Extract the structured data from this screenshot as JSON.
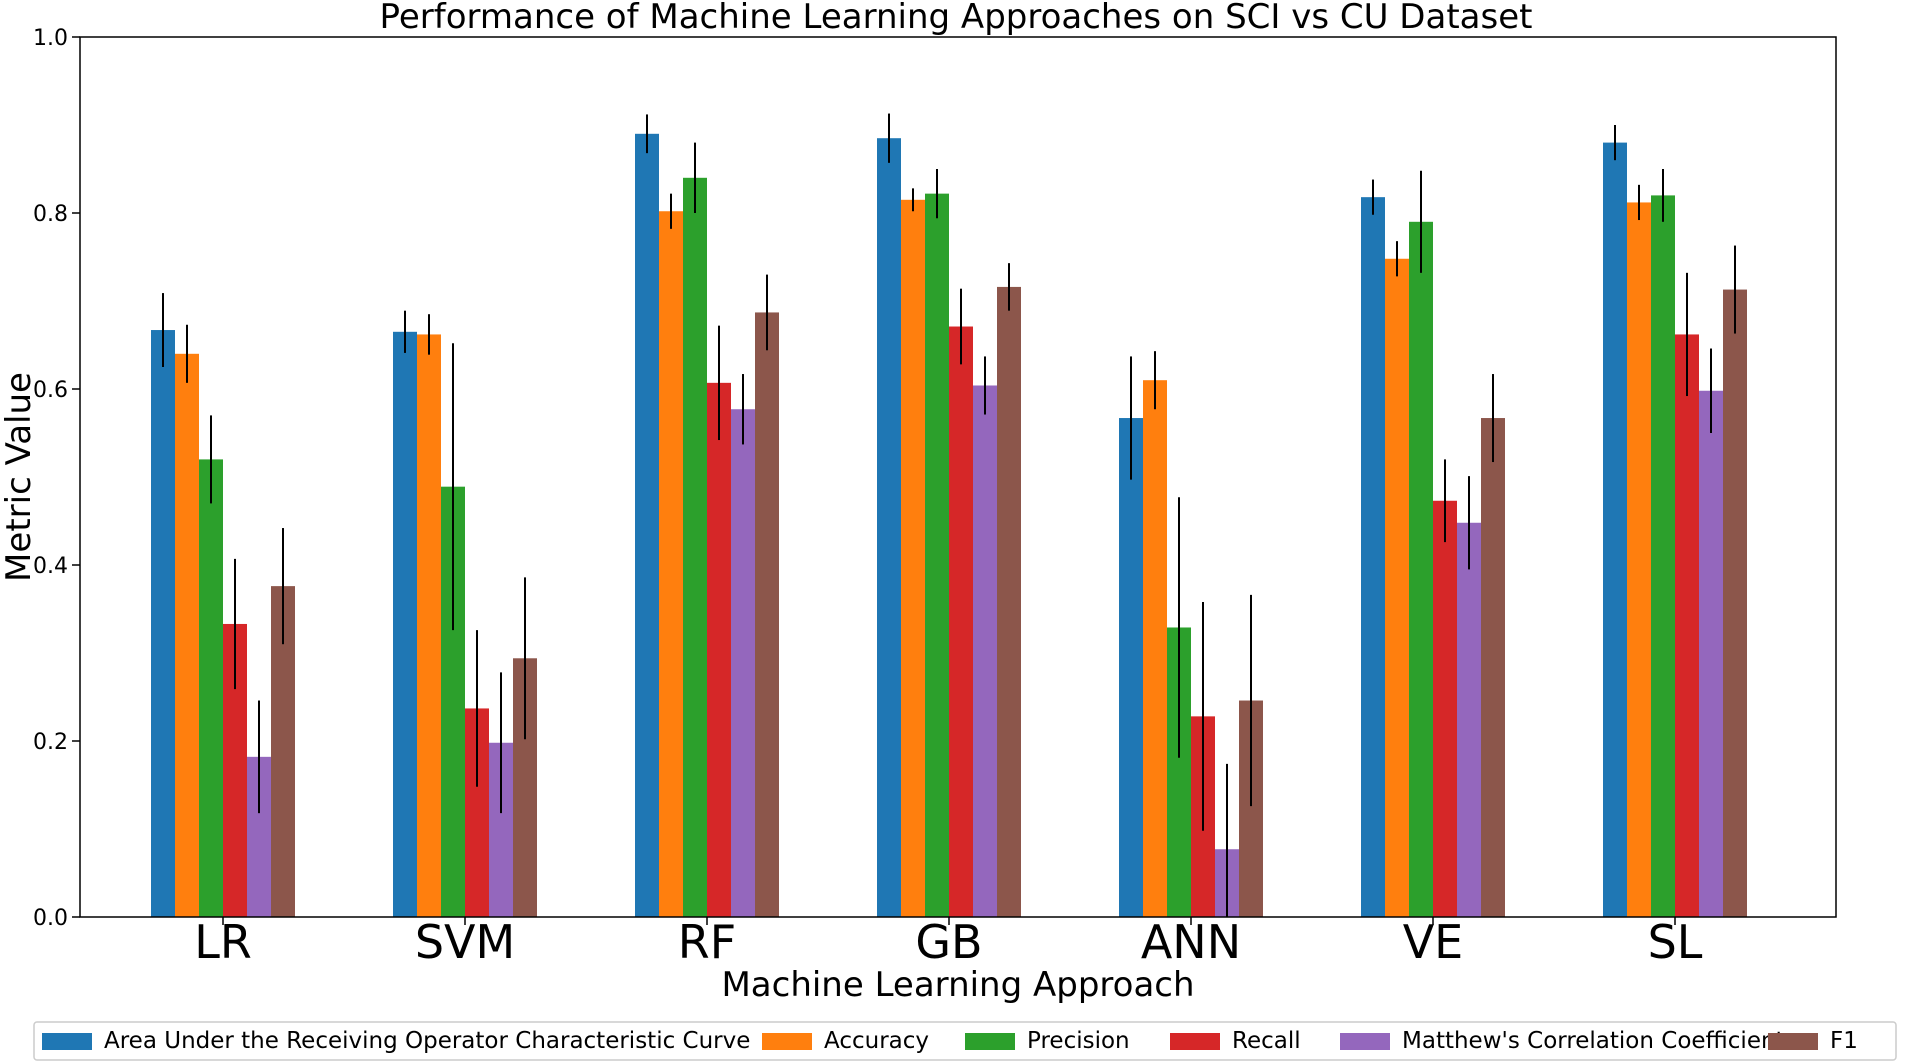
{
  "chart_data": {
    "type": "bar",
    "title": "Performance of Machine Learning Approaches on SCI vs CU Dataset",
    "xlabel": "Machine Learning Approach",
    "ylabel": "Metric Value",
    "ylim": [
      0,
      1.0
    ],
    "yticks": [
      "0.0",
      "0.2",
      "0.4",
      "0.6",
      "0.8",
      "1.0"
    ],
    "categories": [
      "LR",
      "SVM",
      "RF",
      "GB",
      "ANN",
      "VE",
      "SL"
    ],
    "legend_position": "bottom",
    "series": [
      {
        "name": "Area Under the Receiving Operator Characteristic Curve",
        "color": "#1f77b4",
        "values": [
          0.667,
          0.665,
          0.89,
          0.885,
          0.567,
          0.818,
          0.88
        ],
        "errors": [
          0.042,
          0.024,
          0.022,
          0.028,
          0.07,
          0.02,
          0.02
        ]
      },
      {
        "name": "Accuracy",
        "color": "#ff7f0e",
        "values": [
          0.64,
          0.662,
          0.802,
          0.815,
          0.61,
          0.748,
          0.812
        ],
        "errors": [
          0.033,
          0.023,
          0.02,
          0.013,
          0.033,
          0.02,
          0.02
        ]
      },
      {
        "name": "Precision",
        "color": "#2ca02c",
        "values": [
          0.52,
          0.489,
          0.84,
          0.822,
          0.329,
          0.79,
          0.82
        ],
        "errors": [
          0.05,
          0.163,
          0.04,
          0.028,
          0.148,
          0.058,
          0.03
        ]
      },
      {
        "name": "Recall",
        "color": "#d62728",
        "values": [
          0.333,
          0.237,
          0.607,
          0.671,
          0.228,
          0.473,
          0.662
        ],
        "errors": [
          0.074,
          0.089,
          0.065,
          0.043,
          0.13,
          0.047,
          0.07
        ]
      },
      {
        "name": "Matthew's Correlation Coefficient",
        "color": "#9467bd",
        "values": [
          0.182,
          0.198,
          0.577,
          0.604,
          0.077,
          0.448,
          0.598
        ],
        "errors": [
          0.064,
          0.08,
          0.04,
          0.033,
          0.097,
          0.053,
          0.048
        ]
      },
      {
        "name": "F1",
        "color": "#8c564b",
        "values": [
          0.376,
          0.294,
          0.687,
          0.716,
          0.246,
          0.567,
          0.713
        ],
        "errors": [
          0.066,
          0.092,
          0.043,
          0.027,
          0.12,
          0.05,
          0.05
        ]
      }
    ]
  }
}
